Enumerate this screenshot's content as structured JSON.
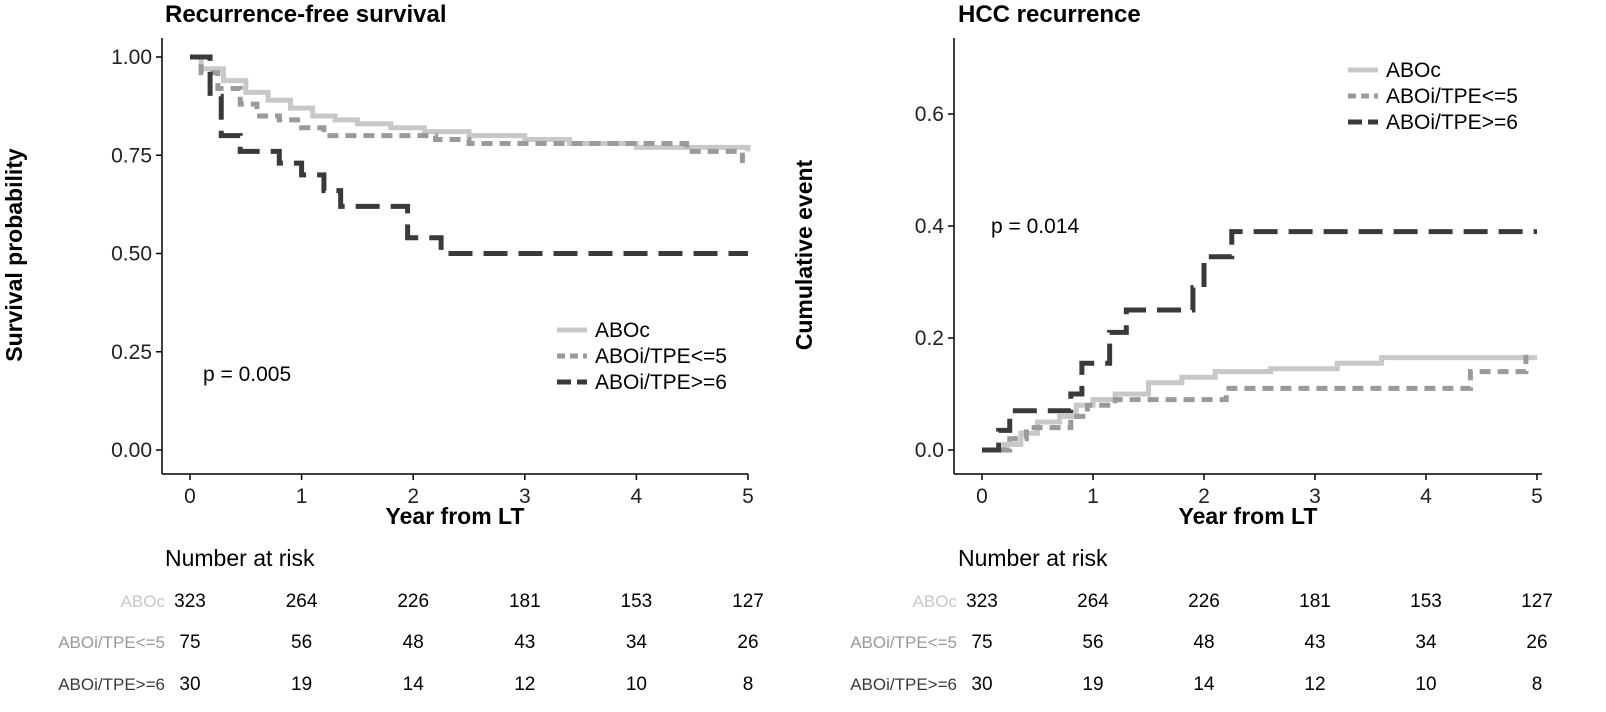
{
  "chart_data": [
    {
      "type": "line",
      "title": "Recurrence-free survival",
      "xlabel": "Year from LT",
      "ylabel": "Survival probability",
      "xlim": [
        0,
        5
      ],
      "ylim": [
        0,
        1
      ],
      "x_ticks": [
        "0",
        "1",
        "2",
        "3",
        "4",
        "5"
      ],
      "y_ticks": [
        "0.00",
        "0.25",
        "0.50",
        "0.75",
        "1.00"
      ],
      "p_value": "p = 0.005",
      "legend_position": "bottom-right",
      "series": [
        {
          "name": "ABOc",
          "color": "#c8c8c8",
          "style": "solid",
          "x": [
            0,
            0.1,
            0.3,
            0.5,
            0.7,
            0.9,
            1.1,
            1.3,
            1.5,
            1.8,
            2.1,
            2.5,
            3.0,
            3.4,
            4.0,
            4.5,
            5.0
          ],
          "y": [
            1.0,
            0.97,
            0.94,
            0.91,
            0.89,
            0.87,
            0.85,
            0.84,
            0.83,
            0.82,
            0.81,
            0.8,
            0.79,
            0.78,
            0.77,
            0.77,
            0.76
          ]
        },
        {
          "name": "ABOi/TPE<=5",
          "color": "#9a9a9a",
          "style": "dashed",
          "x": [
            0,
            0.1,
            0.25,
            0.45,
            0.6,
            0.8,
            1.0,
            1.2,
            2.2,
            2.5,
            4.45,
            4.95
          ],
          "y": [
            1.0,
            0.96,
            0.92,
            0.88,
            0.85,
            0.84,
            0.82,
            0.8,
            0.79,
            0.78,
            0.76,
            0.73
          ]
        },
        {
          "name": "ABOi/TPE>=6",
          "color": "#3a3a3a",
          "style": "longdash",
          "x": [
            0,
            0.18,
            0.28,
            0.45,
            0.8,
            1.0,
            1.2,
            1.35,
            1.95,
            2.25,
            5.0
          ],
          "y": [
            1.0,
            0.9,
            0.8,
            0.76,
            0.73,
            0.7,
            0.66,
            0.62,
            0.54,
            0.5,
            0.5
          ]
        }
      ],
      "risk_table": {
        "title": "Number at risk",
        "times": [
          0,
          1,
          2,
          3,
          4,
          5
        ],
        "rows": [
          {
            "label": "ABOc",
            "color": "#c8c8c8",
            "values": [
              "323",
              "264",
              "226",
              "181",
              "153",
              "127"
            ]
          },
          {
            "label": "ABOi/TPE<=5",
            "color": "#9a9a9a",
            "values": [
              "75",
              "56",
              "48",
              "43",
              "34",
              "26"
            ]
          },
          {
            "label": "ABOi/TPE>=6",
            "color": "#3a3a3a",
            "values": [
              "30",
              "19",
              "14",
              "12",
              "10",
              "8"
            ]
          }
        ]
      }
    },
    {
      "type": "line",
      "title": "HCC recurrence",
      "xlabel": "Year from LT",
      "ylabel": "Cumulative event",
      "xlim": [
        0,
        5
      ],
      "ylim": [
        0,
        0.7
      ],
      "x_ticks": [
        "0",
        "1",
        "2",
        "3",
        "4",
        "5"
      ],
      "y_ticks": [
        "0.0",
        "0.2",
        "0.4",
        "0.6"
      ],
      "p_value": "p = 0.014",
      "legend_position": "top-right",
      "series": [
        {
          "name": "ABOc",
          "color": "#c8c8c8",
          "style": "solid",
          "x": [
            0,
            0.2,
            0.35,
            0.5,
            0.7,
            0.85,
            1.0,
            1.2,
            1.5,
            1.8,
            2.1,
            2.6,
            3.2,
            3.6,
            5.0
          ],
          "y": [
            0.0,
            0.01,
            0.03,
            0.05,
            0.06,
            0.08,
            0.09,
            0.1,
            0.12,
            0.13,
            0.14,
            0.145,
            0.155,
            0.165,
            0.165
          ]
        },
        {
          "name": "ABOi/TPE<=5",
          "color": "#9a9a9a",
          "style": "dashed",
          "x": [
            0,
            0.25,
            0.4,
            0.8,
            0.95,
            1.2,
            2.2,
            4.4,
            4.9
          ],
          "y": [
            0.0,
            0.02,
            0.04,
            0.06,
            0.08,
            0.09,
            0.11,
            0.14,
            0.17
          ]
        },
        {
          "name": "ABOi/TPE>=6",
          "color": "#3a3a3a",
          "style": "longdash",
          "x": [
            0,
            0.15,
            0.25,
            0.8,
            0.9,
            1.15,
            1.3,
            1.9,
            2.0,
            2.25,
            5.0
          ],
          "y": [
            0.0,
            0.035,
            0.07,
            0.1,
            0.155,
            0.21,
            0.25,
            0.29,
            0.345,
            0.39,
            0.39
          ]
        }
      ],
      "risk_table": {
        "title": "Number at risk",
        "times": [
          0,
          1,
          2,
          3,
          4,
          5
        ],
        "rows": [
          {
            "label": "ABOc",
            "color": "#c8c8c8",
            "values": [
              "323",
              "264",
              "226",
              "181",
              "153",
              "127"
            ]
          },
          {
            "label": "ABOi/TPE<=5",
            "color": "#9a9a9a",
            "values": [
              "75",
              "56",
              "48",
              "43",
              "34",
              "26"
            ]
          },
          {
            "label": "ABOi/TPE>=6",
            "color": "#3a3a3a",
            "values": [
              "30",
              "19",
              "14",
              "12",
              "10",
              "8"
            ]
          }
        ]
      }
    }
  ]
}
